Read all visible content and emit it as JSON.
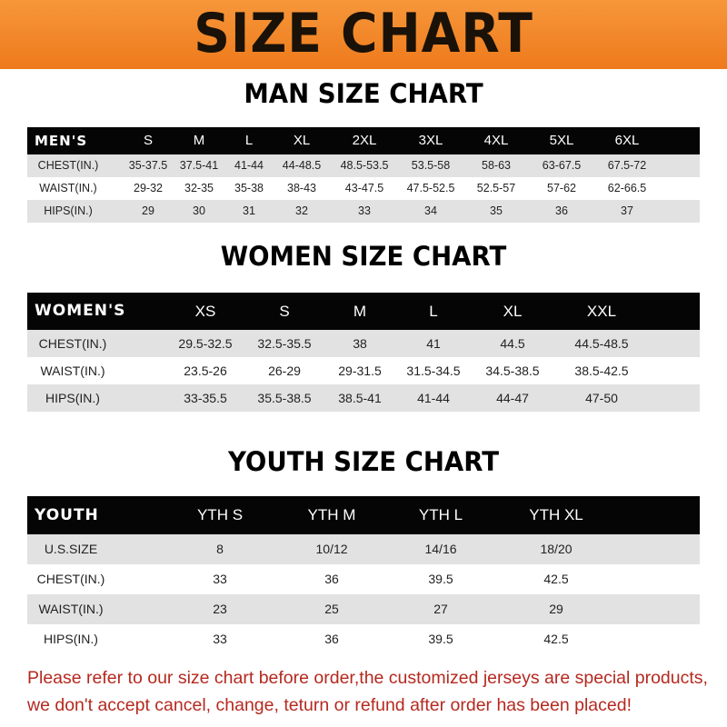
{
  "banner": {
    "title": "SIZE CHART"
  },
  "men": {
    "title": "MAN SIZE CHART",
    "header": [
      "MEN'S",
      "S",
      "M",
      "L",
      "XL",
      "2XL",
      "3XL",
      "4XL",
      "5XL",
      "6XL"
    ],
    "rows": [
      [
        "CHEST(IN.)",
        "35-37.5",
        "37.5-41",
        "41-44",
        "44-48.5",
        "48.5-53.5",
        "53.5-58",
        "58-63",
        "63-67.5",
        "67.5-72"
      ],
      [
        "WAIST(IN.)",
        "29-32",
        "32-35",
        "35-38",
        "38-43",
        "43-47.5",
        "47.5-52.5",
        "52.5-57",
        "57-62",
        "62-66.5"
      ],
      [
        "HIPS(IN.)",
        "29",
        "30",
        "31",
        "32",
        "33",
        "34",
        "35",
        "36",
        "37"
      ]
    ]
  },
  "women": {
    "title": "WOMEN SIZE CHART",
    "header": [
      "WOMEN'S",
      "XS",
      "S",
      "M",
      "L",
      "XL",
      "XXL"
    ],
    "rows": [
      [
        "CHEST(IN.)",
        "29.5-32.5",
        "32.5-35.5",
        "38",
        "41",
        "44.5",
        "44.5-48.5"
      ],
      [
        "WAIST(IN.)",
        "23.5-26",
        "26-29",
        "29-31.5",
        "31.5-34.5",
        "34.5-38.5",
        "38.5-42.5"
      ],
      [
        "HIPS(IN.)",
        "33-35.5",
        "35.5-38.5",
        "38.5-41",
        "41-44",
        "44-47",
        "47-50"
      ]
    ]
  },
  "youth": {
    "title": "YOUTH SIZE CHART",
    "header": [
      "YOUTH",
      "YTH S",
      "YTH M",
      "YTH L",
      "YTH XL"
    ],
    "rows": [
      [
        "U.S.SIZE",
        "8",
        "10/12",
        "14/16",
        "18/20"
      ],
      [
        "CHEST(IN.)",
        "33",
        "36",
        "39.5",
        "42.5"
      ],
      [
        "WAIST(IN.)",
        "23",
        "25",
        "27",
        "29"
      ],
      [
        "HIPS(IN.)",
        "33",
        "36",
        "39.5",
        "42.5"
      ]
    ]
  },
  "notice": {
    "line1": "Please refer to our size chart before order,the customized jerseys are special products,",
    "line2": "we don't accept cancel, change, teturn or refund after order has been placed!"
  },
  "colors": {
    "banner": "#f08a2a",
    "header_row": "#050505",
    "stripe": "#e2e2e2",
    "notice": "#b5291f"
  }
}
